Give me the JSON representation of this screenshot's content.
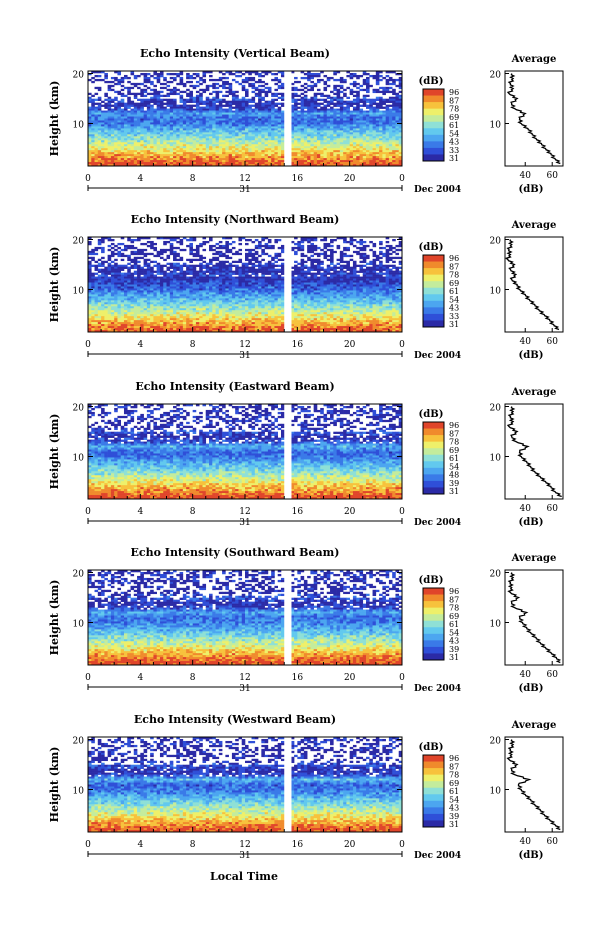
{
  "figure": {
    "time_unit_label": "Local Time",
    "day_label": "31",
    "month_label": "Dec 2004",
    "colorbar_unit": "(dB)",
    "colorbar_ticks": [
      "96",
      "87",
      "78",
      "69",
      "61",
      "54",
      "43",
      "33",
      "31"
    ],
    "height_axis_label": "Height (km)",
    "avg_title": "Average",
    "avg_xlabel": "(dB)"
  },
  "colors": {
    "scale": [
      "#2b2aa6",
      "#2f4fd8",
      "#3a7ae8",
      "#4ca6f0",
      "#62c9ee",
      "#8fe0d6",
      "#c4ec9c",
      "#eef06a",
      "#f7c23c",
      "#f08a2c",
      "#e0452a"
    ]
  },
  "chart_data": [
    {
      "type": "heatmap",
      "title": "Echo Intensity (Vertical Beam)",
      "ylabel": "Height (km)",
      "x_ticks": [
        "0",
        "4",
        "8",
        "12",
        "16",
        "20",
        "0"
      ],
      "y_ticks": [
        "20",
        "10"
      ],
      "xlim_hours": [
        0,
        24
      ],
      "ylim_km": [
        1.5,
        20.5
      ],
      "gap_hours": [
        15.0,
        15.4
      ],
      "colorbar": {
        "unit": "(dB)",
        "ticks": [
          "96",
          "87",
          "78",
          "69",
          "61",
          "54",
          "43",
          "33",
          "31"
        ]
      },
      "average_profile": {
        "title": "Average",
        "xlabel": "(dB)",
        "x_ticks": [
          "40",
          "60"
        ],
        "y_ticks": [
          "20",
          "10"
        ],
        "xlim_db": [
          25,
          68
        ],
        "ylim_km": [
          1.5,
          20.5
        ],
        "height_km": [
          2,
          3,
          4,
          5,
          6,
          7,
          8,
          9,
          10,
          11,
          12,
          13,
          14,
          15,
          16,
          17,
          18,
          19,
          20
        ],
        "db": [
          66,
          62,
          59,
          55,
          52,
          48,
          45,
          42,
          37,
          36,
          40,
          32,
          30,
          34,
          28,
          31,
          29,
          31,
          30
        ]
      }
    },
    {
      "type": "heatmap",
      "title": "Echo Intensity (Northward Beam)",
      "ylabel": "Height (km)",
      "x_ticks": [
        "0",
        "4",
        "8",
        "12",
        "16",
        "20",
        "0"
      ],
      "y_ticks": [
        "20",
        "10"
      ],
      "xlim_hours": [
        0,
        24
      ],
      "ylim_km": [
        1.5,
        20.5
      ],
      "gap_hours": [
        15.0,
        15.4
      ],
      "colorbar": {
        "unit": "(dB)",
        "ticks": [
          "96",
          "87",
          "78",
          "69",
          "61",
          "54",
          "43",
          "33",
          "31"
        ]
      },
      "average_profile": {
        "title": "Average",
        "xlabel": "(dB)",
        "x_ticks": [
          "40",
          "60"
        ],
        "y_ticks": [
          "20",
          "10"
        ],
        "xlim_db": [
          25,
          68
        ],
        "ylim_km": [
          1.5,
          20.5
        ],
        "height_km": [
          2,
          3,
          4,
          5,
          6,
          7,
          8,
          9,
          10,
          11,
          12,
          13,
          14,
          15,
          16,
          17,
          18,
          19,
          20
        ],
        "db": [
          65,
          61,
          58,
          54,
          50,
          47,
          43,
          40,
          36,
          34,
          30,
          33,
          29,
          32,
          27,
          29,
          28,
          30,
          29
        ]
      }
    },
    {
      "type": "heatmap",
      "title": "Echo Intensity (Eastward Beam)",
      "ylabel": "Height (km)",
      "x_ticks": [
        "0",
        "4",
        "8",
        "12",
        "16",
        "20",
        "0"
      ],
      "y_ticks": [
        "20",
        "10"
      ],
      "xlim_hours": [
        0,
        24
      ],
      "ylim_km": [
        1.5,
        20.5
      ],
      "gap_hours": [
        15.0,
        15.4
      ],
      "colorbar": {
        "unit": "(dB)",
        "ticks": [
          "96",
          "87",
          "78",
          "69",
          "61",
          "54",
          "48",
          "39",
          "31"
        ]
      },
      "average_profile": {
        "title": "Average",
        "xlabel": "(dB)",
        "x_ticks": [
          "40",
          "60"
        ],
        "y_ticks": [
          "20",
          "10"
        ],
        "xlim_db": [
          25,
          68
        ],
        "ylim_km": [
          1.5,
          20.5
        ],
        "height_km": [
          2,
          3,
          4,
          5,
          6,
          7,
          8,
          9,
          10,
          11,
          12,
          13,
          14,
          15,
          16,
          17,
          18,
          19,
          20
        ],
        "db": [
          67,
          62,
          59,
          55,
          51,
          47,
          44,
          41,
          37,
          36,
          42,
          33,
          30,
          34,
          28,
          31,
          29,
          31,
          30
        ]
      }
    },
    {
      "type": "heatmap",
      "title": "Echo Intensity (Southward Beam)",
      "ylabel": "Height (km)",
      "x_ticks": [
        "0",
        "4",
        "8",
        "12",
        "16",
        "20",
        "0"
      ],
      "y_ticks": [
        "20",
        "10"
      ],
      "xlim_hours": [
        0,
        24
      ],
      "ylim_km": [
        1.5,
        20.5
      ],
      "gap_hours": [
        15.0,
        15.4
      ],
      "colorbar": {
        "unit": "(dB)",
        "ticks": [
          "96",
          "87",
          "78",
          "69",
          "61",
          "54",
          "43",
          "39",
          "31"
        ]
      },
      "average_profile": {
        "title": "Average",
        "xlabel": "(dB)",
        "x_ticks": [
          "40",
          "60"
        ],
        "y_ticks": [
          "20",
          "10"
        ],
        "xlim_db": [
          25,
          68
        ],
        "ylim_km": [
          1.5,
          20.5
        ],
        "height_km": [
          2,
          3,
          4,
          5,
          6,
          7,
          8,
          9,
          10,
          11,
          12,
          13,
          14,
          15,
          16,
          17,
          18,
          19,
          20
        ],
        "db": [
          66,
          63,
          59,
          55,
          51,
          48,
          44,
          41,
          38,
          36,
          41,
          32,
          30,
          35,
          29,
          30,
          29,
          31,
          30
        ]
      }
    },
    {
      "type": "heatmap",
      "title": "Echo Intensity (Westward Beam)",
      "ylabel": "Height (km)",
      "x_ticks": [
        "0",
        "4",
        "8",
        "12",
        "16",
        "20",
        "0"
      ],
      "y_ticks": [
        "20",
        "10"
      ],
      "xlim_hours": [
        0,
        24
      ],
      "ylim_km": [
        1.5,
        20.5
      ],
      "gap_hours": [
        15.0,
        15.4
      ],
      "colorbar": {
        "unit": "(dB)",
        "ticks": [
          "96",
          "87",
          "78",
          "69",
          "61",
          "54",
          "43",
          "39",
          "31"
        ]
      },
      "average_profile": {
        "title": "Average",
        "xlabel": "(dB)",
        "x_ticks": [
          "40",
          "60"
        ],
        "y_ticks": [
          "20",
          "10"
        ],
        "xlim_db": [
          25,
          68
        ],
        "ylim_km": [
          1.5,
          20.5
        ],
        "height_km": [
          2,
          3,
          4,
          5,
          6,
          7,
          8,
          9,
          10,
          11,
          12,
          13,
          14,
          15,
          16,
          17,
          18,
          19,
          20
        ],
        "db": [
          66,
          62,
          58,
          54,
          51,
          47,
          44,
          40,
          37,
          35,
          43,
          32,
          30,
          34,
          28,
          30,
          29,
          31,
          30
        ]
      }
    }
  ]
}
